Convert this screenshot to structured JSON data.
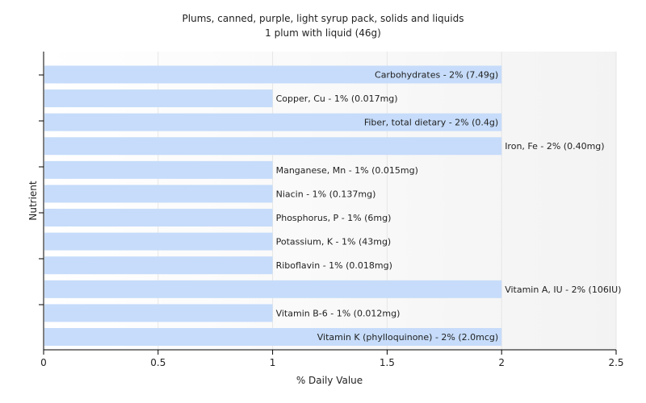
{
  "chart_data": {
    "type": "bar",
    "orientation": "horizontal",
    "title": "Plums, canned, purple, light syrup pack, solids and liquids",
    "subtitle": "1 plum with liquid (46g)",
    "xlabel": "% Daily Value",
    "ylabel": "Nutrient",
    "xlim": [
      0,
      2.5
    ],
    "xticks": [
      "0",
      "0.5",
      "1",
      "1.5",
      "2",
      "2.5"
    ],
    "grid": true,
    "bar_color": "#c6dcfa",
    "categories": [
      "Carbohydrates",
      "Copper, Cu",
      "Fiber, total dietary",
      "Iron, Fe",
      "Manganese, Mn",
      "Niacin",
      "Phosphorus, P",
      "Potassium, K",
      "Riboflavin",
      "Vitamin A, IU",
      "Vitamin B-6",
      "Vitamin K (phylloquinone)"
    ],
    "values": [
      2,
      1,
      2,
      2,
      1,
      1,
      1,
      1,
      1,
      2,
      1,
      2
    ],
    "labels": [
      "Carbohydrates - 2% (7.49g)",
      "Copper, Cu - 1% (0.017mg)",
      "Fiber, total dietary - 2% (0.4g)",
      "Iron, Fe - 2% (0.40mg)",
      "Manganese, Mn - 1% (0.015mg)",
      "Niacin - 1% (0.137mg)",
      "Phosphorus, P - 1% (6mg)",
      "Potassium, K - 1% (43mg)",
      "Riboflavin - 1% (0.018mg)",
      "Vitamin A, IU - 2% (106IU)",
      "Vitamin B-6 - 1% (0.012mg)",
      "Vitamin K (phylloquinone) - 2% (2.0mcg)"
    ],
    "label_inside": [
      true,
      false,
      true,
      false,
      false,
      false,
      false,
      false,
      false,
      false,
      false,
      true
    ]
  }
}
